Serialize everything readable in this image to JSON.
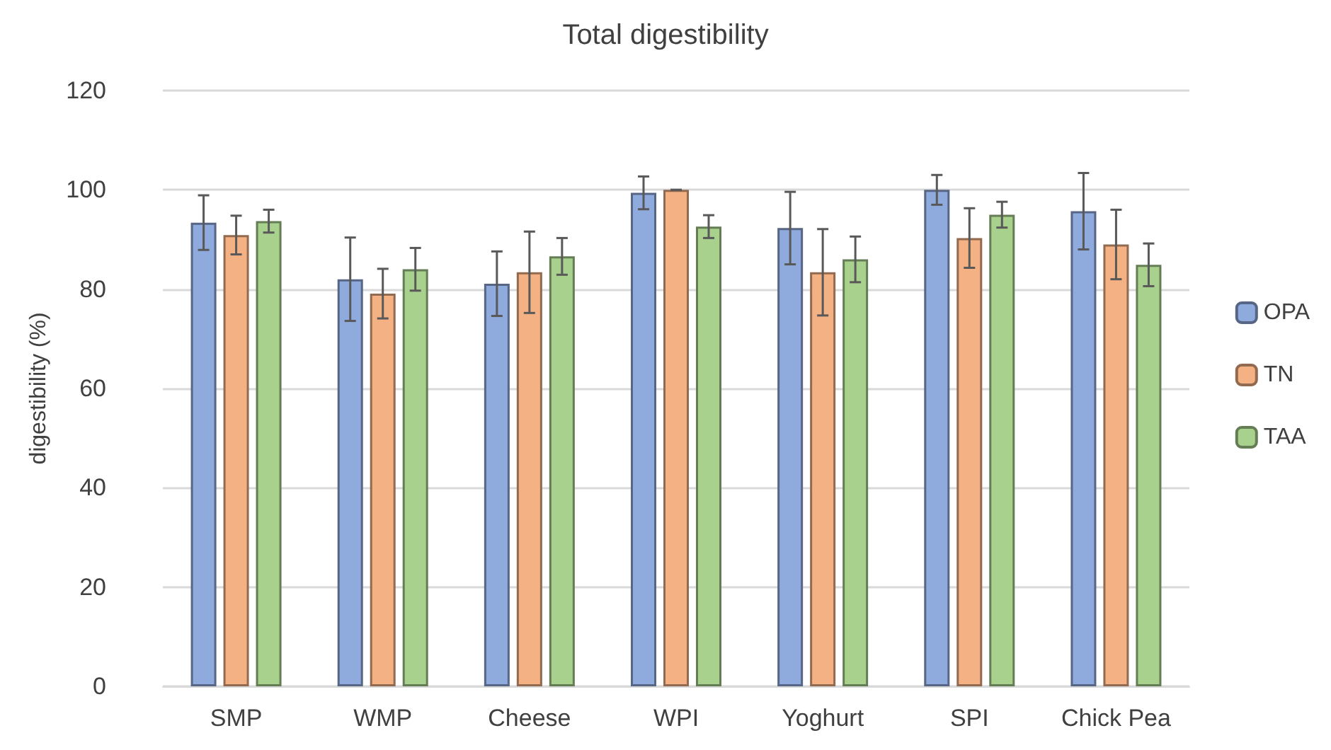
{
  "chart_data": {
    "type": "bar",
    "title": "Total digestibility",
    "ylabel": "digestibility (%)",
    "categories": [
      "SMP",
      "WMP",
      "Cheese",
      "WPI",
      "Yoghurt",
      "SPI",
      "Chick Pea"
    ],
    "series": [
      {
        "name": "OPA",
        "color": "#8faadc",
        "values": [
          93.4,
          82,
          81.1,
          99.4,
          92.3,
          100,
          95.7
        ],
        "errors": [
          5.5,
          8.4,
          6.5,
          3.3,
          7.3,
          3,
          7.7
        ]
      },
      {
        "name": "TN",
        "color": "#f4b183",
        "values": [
          90.9,
          79.1,
          83.4,
          100,
          83.4,
          90.3,
          89
        ],
        "errors": [
          3.9,
          5,
          8.2,
          0,
          8.7,
          6,
          7
        ]
      },
      {
        "name": "TAA",
        "color": "#a9d18e",
        "values": [
          93.7,
          84,
          86.6,
          92.6,
          86,
          95,
          84.9
        ],
        "errors": [
          2.3,
          4.3,
          3.7,
          2.3,
          4.6,
          2.6,
          4.3
        ]
      }
    ],
    "ylim": [
      0,
      120
    ],
    "yticks": [
      0,
      20,
      40,
      60,
      80,
      100,
      120
    ],
    "grid": "y",
    "legend": "right"
  }
}
